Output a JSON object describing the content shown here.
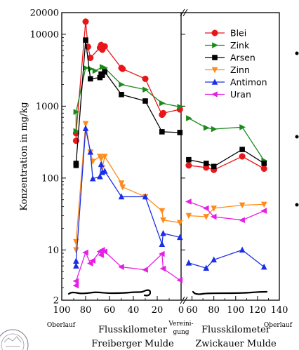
{
  "chart_data": {
    "type": "line",
    "ylabel": "Konzentration in mg/kg",
    "y_scale": "log",
    "ylim": [
      2,
      20000
    ],
    "y_ticks": [
      {
        "value": 2,
        "label": "2"
      },
      {
        "value": 10,
        "label": "10"
      },
      {
        "value": 100,
        "label": "100"
      },
      {
        "value": 1000,
        "label": "1000"
      },
      {
        "value": 10000,
        "label": "10000"
      },
      {
        "value": 20000,
        "label": "20000"
      }
    ],
    "panels": [
      {
        "id": "freiberger",
        "xlabel_line1": "Flusskilometer",
        "xlabel_line2": "Freiberger Mulde",
        "xlim": [
          100,
          0
        ],
        "x_ticks": [
          {
            "value": 100,
            "label": "100"
          },
          {
            "value": 80,
            "label": "80"
          },
          {
            "value": 60,
            "label": "60"
          },
          {
            "value": 40,
            "label": "40"
          },
          {
            "value": 20,
            "label": "20"
          },
          {
            "value": 0,
            "label": "0"
          }
        ],
        "left_note": "Oberlauf",
        "right_note": [
          "Vereini-",
          "gung"
        ]
      },
      {
        "id": "zwickauer",
        "xlabel_line1": "Flusskilometer",
        "xlabel_line2": "Zwickauer Mulde",
        "xlim": [
          50,
          140
        ],
        "x_ticks": [
          {
            "value": 60,
            "label": "60"
          },
          {
            "value": 80,
            "label": "80"
          },
          {
            "value": 100,
            "label": "100"
          },
          {
            "value": 120,
            "label": "120"
          },
          {
            "value": 140,
            "label": "140"
          }
        ],
        "right_note": "Oberlauf"
      }
    ],
    "legend": {
      "position": "top-right"
    },
    "series": [
      {
        "name": "Blei",
        "color": "#e8161b",
        "marker": "circle",
        "freiberger": {
          "x": [
            88,
            88,
            80,
            78,
            76,
            68,
            67,
            66,
            64,
            50,
            49,
            30,
            16,
            15,
            1
          ],
          "y": [
            330,
            420,
            15000,
            6700,
            4700,
            6500,
            7100,
            6100,
            6800,
            3400,
            3300,
            2400,
            760,
            800,
            900
          ]
        },
        "zwickauer": {
          "x": [
            57,
            73,
            80,
            106,
            126
          ],
          "y": [
            150,
            140,
            130,
            200,
            135
          ]
        }
      },
      {
        "name": "Zink",
        "color": "#1a8a1a",
        "marker": "triangle-right",
        "freiberger": {
          "x": [
            88,
            88,
            80,
            76,
            72,
            66,
            64,
            50,
            30,
            16,
            1
          ],
          "y": [
            450,
            830,
            3400,
            3300,
            3100,
            3500,
            3400,
            2000,
            1700,
            1100,
            980
          ]
        },
        "zwickauer": {
          "x": [
            57,
            73,
            80,
            106,
            126
          ],
          "y": [
            680,
            500,
            480,
            510,
            175
          ]
        }
      },
      {
        "name": "Arsen",
        "color": "#000000",
        "marker": "square",
        "freiberger": {
          "x": [
            88,
            88,
            80,
            76,
            68,
            67,
            66,
            64,
            50,
            30,
            16,
            1
          ],
          "y": [
            150,
            160,
            8300,
            2400,
            2500,
            2800,
            2700,
            3000,
            1450,
            1180,
            440,
            430
          ]
        },
        "zwickauer": {
          "x": [
            57,
            73,
            80,
            106,
            126
          ],
          "y": [
            180,
            160,
            145,
            250,
            160
          ]
        }
      },
      {
        "name": "Zinn",
        "color": "#ff8c1a",
        "marker": "triangle-down",
        "freiberger": {
          "x": [
            88,
            88,
            80,
            76,
            74,
            68,
            67,
            66,
            64,
            50,
            49,
            30,
            16,
            15,
            1
          ],
          "y": [
            10,
            13,
            570,
            230,
            170,
            200,
            185,
            140,
            200,
            85,
            75,
            55,
            35,
            26,
            24
          ]
        },
        "zwickauer": {
          "x": [
            57,
            73,
            80,
            106,
            126
          ],
          "y": [
            30,
            29,
            38,
            42,
            43
          ]
        }
      },
      {
        "name": "Antimon",
        "color": "#1a2ee8",
        "marker": "triangle-up",
        "freiberger": {
          "x": [
            88,
            88,
            80,
            76,
            74,
            68,
            67,
            66,
            64,
            50,
            30,
            16,
            15,
            1
          ],
          "y": [
            6,
            7,
            490,
            230,
            98,
            105,
            155,
            120,
            125,
            55,
            55,
            12,
            17,
            15
          ]
        },
        "zwickauer": {
          "x": [
            57,
            73,
            80,
            106,
            126
          ],
          "y": [
            6.6,
            5.6,
            7.3,
            10,
            5.8
          ]
        }
      },
      {
        "name": "Uran",
        "color": "#e61ee6",
        "marker": "triangle-left",
        "freiberger": {
          "x": [
            88,
            88,
            80,
            76,
            74,
            68,
            67,
            66,
            64,
            50,
            30,
            16,
            15,
            1
          ],
          "y": [
            3.2,
            3.7,
            9.2,
            6.5,
            7.1,
            9.5,
            8.5,
            10,
            9.5,
            5.8,
            5.3,
            8.8,
            5.5,
            3.8
          ]
        },
        "zwickauer": {
          "x": [
            57,
            73,
            80,
            106,
            126
          ],
          "y": [
            47,
            38,
            29,
            26,
            35
          ]
        }
      }
    ]
  }
}
